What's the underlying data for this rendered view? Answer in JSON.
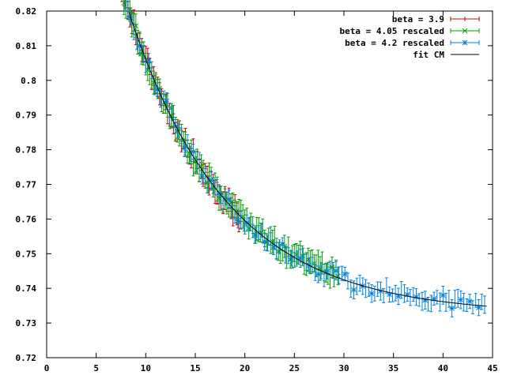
{
  "chart_data": {
    "type": "scatter",
    "title": "",
    "xlabel": "",
    "ylabel": "",
    "xlim": [
      0,
      45
    ],
    "ylim": [
      0.72,
      0.82
    ],
    "xticks": [
      "0",
      "5",
      "10",
      "15",
      "20",
      "25",
      "30",
      "35",
      "40",
      "45"
    ],
    "yticks": [
      "0.72",
      "0.73",
      "0.74",
      "0.75",
      "0.76",
      "0.77",
      "0.78",
      "0.79",
      "0.8",
      "0.81",
      "0.82"
    ],
    "grid": false,
    "legend_position": "top-right",
    "series": [
      {
        "name": "beta = 3.9",
        "color": "#cc0000",
        "marker": "plus",
        "x_range": [
          3.0,
          19.6
        ],
        "x_step": 0.2,
        "err": 0.0028,
        "model": {
          "a": 0.7325,
          "b": 0.2,
          "c": 0.1
        }
      },
      {
        "name": "beta = 4.05 rescaled",
        "color": "#00a000",
        "marker": "cross",
        "x_range": [
          4.2,
          29.5
        ],
        "x_step": 0.2,
        "err": 0.003,
        "model": {
          "a": 0.7325,
          "b": 0.2,
          "c": 0.1
        }
      },
      {
        "name": "beta = 4.2 rescaled",
        "color": "#0080e0",
        "marker": "star",
        "x_range": [
          5.8,
          44.3
        ],
        "x_step": 0.3,
        "err": 0.0022,
        "model": {
          "a": 0.7325,
          "b": 0.2,
          "c": 0.1
        }
      }
    ],
    "fit": {
      "name": "fit CM",
      "color": "#000000",
      "formula": "a + b*exp(-c*x)",
      "a": 0.7325,
      "b": 0.2,
      "c": 0.1,
      "x_range": [
        2.5,
        44.5
      ]
    }
  }
}
